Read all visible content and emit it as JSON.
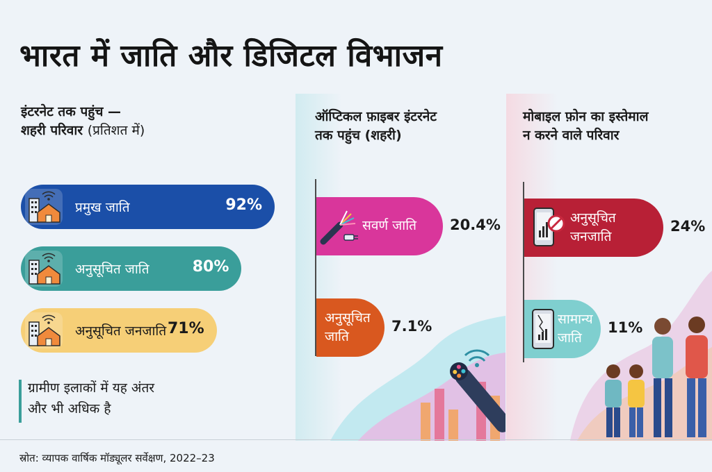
{
  "title": "भारत में जाति और डिजिटल विभाजन",
  "source": "स्रोत: व्यापक वार्षिक मॉड्यूलर सर्वेक्षण, 2022–23",
  "note": {
    "line1": "ग्रामीण इलाकों में यह अंतर",
    "line2": "और भी अधिक है"
  },
  "colors": {
    "blue": "#1b4fa8",
    "teal": "#3a9e9a",
    "yellow": "#f6cf77",
    "magenta": "#d9369b",
    "orange": "#d9581f",
    "crimson": "#b82036",
    "light_teal": "#7fcfcf"
  },
  "chart_data": [
    {
      "type": "bar",
      "title_line1": "इंटरनेट तक पहुंच —",
      "title_line2_bold": "शहरी परिवार",
      "title_line2_light": "(प्रतिशत में)",
      "categories": [
        "प्रमुख जाति",
        "अनुसूचित जाति",
        "अनुसूचित जनजाति"
      ],
      "values": [
        92,
        80,
        71
      ],
      "value_labels": [
        "92%",
        "80%",
        "71%"
      ],
      "icons": [
        "house-wifi-icon",
        "house-wifi-icon",
        "house-wifi-icon"
      ]
    },
    {
      "type": "bar",
      "title_line1": "ऑप्टिकल फ़ाइबर इंटरनेट",
      "title_line2": "तक पहुंच (शहरी)",
      "categories": [
        "सवर्ण जाति",
        "अनुसूचित जाति"
      ],
      "category_lines": [
        [
          "सवर्ण जाति"
        ],
        [
          "अनुसूचित",
          "जाति"
        ]
      ],
      "values": [
        20.4,
        7.1
      ],
      "value_labels": [
        "20.4%",
        "7.1%"
      ],
      "icons": [
        "fiber-cable-icon",
        "none"
      ]
    },
    {
      "type": "bar",
      "title_line1": "मोबाइल फ़ोन का इस्तेमाल",
      "title_line2": "न करने वाले परिवार",
      "categories": [
        "अनुसूचित जनजाति",
        "सामान्य जाति"
      ],
      "category_lines": [
        [
          "अनुसूचित",
          "जनजाति"
        ],
        [
          "सामान्य",
          "जाति"
        ]
      ],
      "values": [
        24,
        11
      ],
      "value_labels": [
        "24%",
        "11%"
      ],
      "icons": [
        "no-phone-icon",
        "broken-phone-icon"
      ]
    }
  ]
}
